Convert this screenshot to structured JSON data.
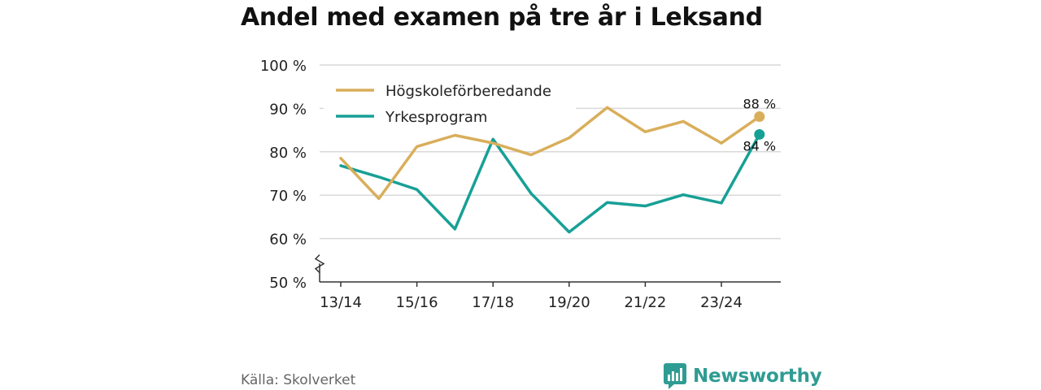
{
  "header": {
    "title": "Andel med examen på tre år i Leksand"
  },
  "footer": {
    "source": "Källa: Skolverket",
    "brand": "Newsworthy"
  },
  "colors": {
    "series1": "#d9ae5b",
    "series2": "#17a096",
    "grid": "#d9d9d9",
    "axis": "#333333",
    "brand": "#2f9c93"
  },
  "chart_data": {
    "type": "line",
    "title": "Andel med examen på tre år i Leksand",
    "xlabel": "",
    "ylabel": "",
    "ylim": [
      50,
      100
    ],
    "yticks": [
      50,
      60,
      70,
      80,
      90,
      100
    ],
    "ytick_labels": [
      "50 %",
      "60 %",
      "70 %",
      "80 %",
      "90 %",
      "100 %"
    ],
    "x": [
      "13/14",
      "14/15",
      "15/16",
      "16/17",
      "17/18",
      "18/19",
      "19/20",
      "20/21",
      "21/22",
      "22/23",
      "23/24",
      "24/25"
    ],
    "xtick_labels": [
      "13/14",
      "15/16",
      "17/18",
      "19/20",
      "21/22",
      "23/24"
    ],
    "y_axis_break": true,
    "grid": true,
    "legend_position": "top-left",
    "series": [
      {
        "name": "Högskoleförberedande",
        "values": [
          78.5,
          69.2,
          81.2,
          83.8,
          82.0,
          79.3,
          83.2,
          90.2,
          84.6,
          87.0,
          82.0,
          88.1
        ],
        "end_label": "88 %"
      },
      {
        "name": "Yrkesprogram",
        "values": [
          76.8,
          74.2,
          71.3,
          62.2,
          82.9,
          70.4,
          61.5,
          68.3,
          67.5,
          70.1,
          68.2,
          84.0
        ],
        "end_label": "84 %"
      }
    ]
  }
}
